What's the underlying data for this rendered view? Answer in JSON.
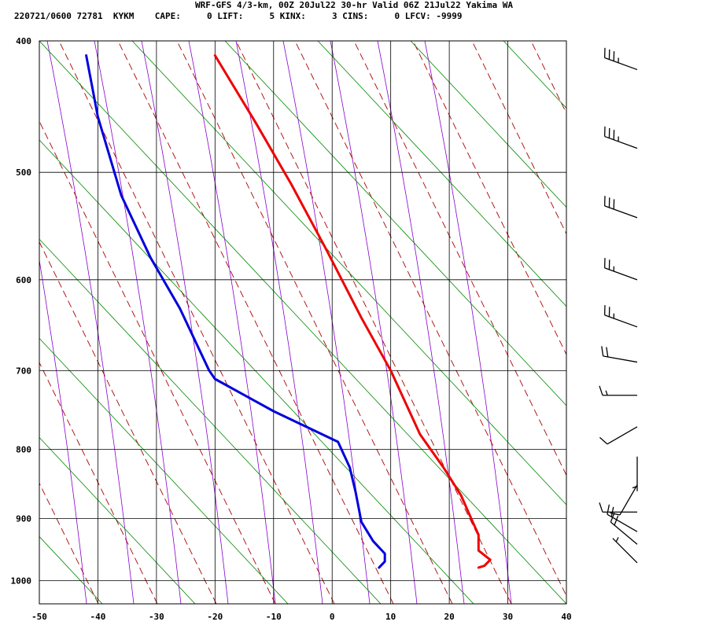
{
  "header": {
    "title": "WRF-GFS 4/3-km, 00Z 20Jul22 30-hr Valid 06Z 21Jul22 Yakima WA",
    "subtitle": "220721/0600 72781  KYKM    CAPE:     0 LIFT:     5 KINX:     3 CINS:     0 LFCV: -9999"
  },
  "chart_data": {
    "type": "line",
    "xlim": [
      -50,
      40
    ],
    "ylim": [
      1040,
      400
    ],
    "y_scale": "log",
    "x_ticks": [
      -50,
      -40,
      -30,
      -20,
      -10,
      0,
      10,
      20,
      30,
      40
    ],
    "x_tick_labels": [
      "-50",
      "-40",
      "-30",
      "-20",
      "-10",
      "0",
      "10",
      "20",
      "30",
      "40"
    ],
    "y_ticks": [
      400,
      500,
      600,
      700,
      800,
      900,
      1000
    ],
    "y_tick_labels": [
      "400",
      "500",
      "600",
      "700",
      "800",
      "900",
      "1000"
    ],
    "grid": true,
    "series": [
      {
        "color": "#ee0000",
        "points": [
          [
            -20,
            410
          ],
          [
            -13,
            460
          ],
          [
            -7,
            510
          ],
          [
            -1,
            570
          ],
          [
            5,
            640
          ],
          [
            10,
            700
          ],
          [
            15,
            780
          ],
          [
            19,
            825
          ],
          [
            22,
            865
          ],
          [
            24,
            905
          ],
          [
            25,
            925
          ],
          [
            25,
            950
          ],
          [
            27,
            965
          ],
          [
            26,
            975
          ],
          [
            25,
            978
          ]
        ]
      },
      {
        "color": "#0000dd",
        "points": [
          [
            -42,
            410
          ],
          [
            -40,
            455
          ],
          [
            -36,
            520
          ],
          [
            -31,
            578
          ],
          [
            -26,
            630
          ],
          [
            -21,
            700
          ],
          [
            -20,
            710
          ],
          [
            -10,
            750
          ],
          [
            1,
            790
          ],
          [
            3,
            825
          ],
          [
            4,
            860
          ],
          [
            5,
            905
          ],
          [
            7,
            935
          ],
          [
            9,
            955
          ],
          [
            9,
            968
          ],
          [
            8,
            978
          ]
        ]
      }
    ],
    "background_lines": {
      "isotherm_color": "#000000",
      "mixing_ratio_color": "#008800",
      "dry_adiabat_color": "#aa0000",
      "moist_adiabat_color": "#8800cc"
    },
    "wind_barbs": [
      {
        "pressure": 420,
        "dir": 290,
        "kt": 35
      },
      {
        "pressure": 480,
        "dir": 290,
        "kt": 35
      },
      {
        "pressure": 540,
        "dir": 290,
        "kt": 30
      },
      {
        "pressure": 600,
        "dir": 290,
        "kt": 25
      },
      {
        "pressure": 650,
        "dir": 290,
        "kt": 25
      },
      {
        "pressure": 690,
        "dir": 280,
        "kt": 20
      },
      {
        "pressure": 730,
        "dir": 270,
        "kt": 15
      },
      {
        "pressure": 770,
        "dir": 240,
        "kt": 10
      },
      {
        "pressure": 810,
        "dir": 180,
        "kt": 5
      },
      {
        "pressure": 850,
        "dir": 210,
        "kt": 10
      },
      {
        "pressure": 890,
        "dir": 270,
        "kt": 10
      },
      {
        "pressure": 920,
        "dir": 300,
        "kt": 20
      },
      {
        "pressure": 940,
        "dir": 310,
        "kt": 20
      },
      {
        "pressure": 970,
        "dir": 315,
        "kt": 5
      }
    ]
  }
}
